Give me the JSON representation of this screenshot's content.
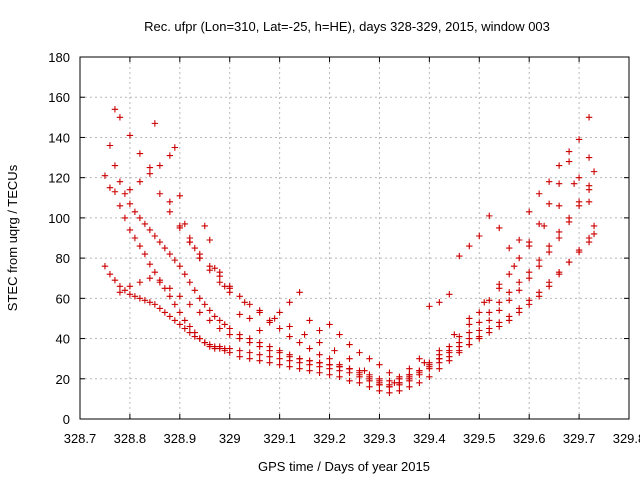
{
  "chart_data": {
    "type": "scatter",
    "title": "Rec. ufpr (Lon=310, Lat=-25, h=HE), days 328-329, 2015, window 003",
    "xlabel": "GPS time / Days of year 2015",
    "ylabel": "STEC from uqrg / TECUs",
    "xlim": [
      328.7,
      329.8
    ],
    "ylim": [
      0,
      180
    ],
    "x_ticks": [
      "328.7",
      "328.8",
      "328.9",
      "329",
      "329.1",
      "329.2",
      "329.3",
      "329.4",
      "329.5",
      "329.6",
      "329.7",
      "329.8"
    ],
    "y_ticks": [
      "0",
      "20",
      "40",
      "60",
      "80",
      "100",
      "120",
      "140",
      "160",
      "180"
    ],
    "grid": true,
    "marker": "+",
    "color": "#cc0000",
    "series": [
      {
        "x": [
          328.75,
          328.76,
          328.77,
          328.78,
          328.79,
          328.8,
          328.81,
          328.82,
          328.83,
          328.84,
          328.85,
          328.86,
          328.87,
          328.88,
          328.89,
          328.9,
          328.91,
          328.92,
          328.93,
          328.94,
          328.95,
          328.96,
          328.97,
          328.98,
          328.99,
          329.0,
          329.02,
          329.04,
          329.06,
          329.08,
          329.1,
          329.12,
          329.14,
          329.16,
          329.18,
          329.2,
          329.22,
          329.24,
          329.26,
          329.28,
          329.3,
          329.32,
          329.34,
          329.36,
          329.38,
          329.4,
          329.42,
          329.44,
          329.46,
          329.48,
          329.5,
          329.52,
          329.54,
          329.56,
          329.58,
          329.6,
          329.62,
          329.64,
          329.66,
          329.68,
          329.7,
          329.72,
          329.73
        ],
        "y": [
          121,
          115,
          113,
          106,
          100,
          94,
          90,
          86,
          82,
          77,
          73,
          69,
          65,
          61,
          57,
          53,
          49,
          46,
          43,
          40,
          38,
          36,
          35,
          35,
          34,
          33,
          31,
          30,
          29,
          28,
          27,
          26,
          25,
          24,
          23,
          22,
          21,
          19,
          18,
          16,
          14,
          13,
          14,
          16,
          18,
          21,
          25,
          29,
          33,
          37,
          41,
          45,
          48,
          51,
          55,
          59,
          63,
          68,
          73,
          78,
          83,
          88,
          92
        ]
      },
      {
        "x": [
          328.75,
          328.76,
          328.77,
          328.78,
          328.79,
          328.8,
          328.81,
          328.82,
          328.83,
          328.84,
          328.85,
          328.86,
          328.87,
          328.88,
          328.89,
          328.9,
          328.91,
          328.92,
          328.93,
          328.94,
          328.95,
          328.96,
          328.97,
          328.98,
          328.99,
          329.0,
          329.02,
          329.04,
          329.06,
          329.08,
          329.1,
          329.12,
          329.14,
          329.16,
          329.18,
          329.2,
          329.22,
          329.24,
          329.26,
          329.28,
          329.3,
          329.32,
          329.34,
          329.36,
          329.38,
          329.4,
          329.42,
          329.44,
          329.46,
          329.48,
          329.5,
          329.52,
          329.54,
          329.56,
          329.58,
          329.6,
          329.62,
          329.64,
          329.66,
          329.68,
          329.7,
          329.72,
          329.73
        ],
        "y": [
          76,
          72,
          69,
          66,
          64,
          62,
          61,
          60,
          59,
          58,
          57,
          55,
          53,
          51,
          49,
          47,
          45,
          43,
          41,
          40,
          38,
          37,
          36,
          36,
          35,
          35,
          34,
          33,
          32,
          31,
          30,
          29,
          28,
          27,
          26,
          25,
          24,
          23,
          21,
          19,
          17,
          16,
          17,
          19,
          22,
          25,
          28,
          31,
          34,
          37,
          40,
          43,
          46,
          49,
          53,
          57,
          61,
          66,
          72,
          78,
          84,
          90,
          96
        ]
      },
      {
        "x": [
          328.76,
          328.77,
          328.78,
          328.79,
          328.8,
          328.81,
          328.82,
          328.83,
          328.84,
          328.85,
          328.86,
          328.87,
          328.88,
          328.89,
          328.9,
          328.91,
          328.92,
          328.93,
          328.94,
          328.95,
          328.96,
          328.97,
          328.98,
          328.99,
          329.0,
          329.02,
          329.04,
          329.06,
          329.08,
          329.1,
          329.12,
          329.14,
          329.16,
          329.18,
          329.2,
          329.22,
          329.24,
          329.26,
          329.28,
          329.3,
          329.32,
          329.34,
          329.36,
          329.38,
          329.4,
          329.42,
          329.44,
          329.46,
          329.48,
          329.5,
          329.52,
          329.54,
          329.56,
          329.58,
          329.6,
          329.62,
          329.64,
          329.66,
          329.68,
          329.7,
          329.72
        ],
        "y": [
          136,
          126,
          118,
          112,
          107,
          103,
          100,
          97,
          94,
          91,
          88,
          85,
          82,
          79,
          76,
          72,
          68,
          64,
          60,
          57,
          54,
          51,
          49,
          47,
          45,
          42,
          40,
          38,
          36,
          34,
          32,
          30,
          29,
          28,
          27,
          26,
          25,
          24,
          22,
          20,
          19,
          20,
          22,
          24,
          27,
          30,
          33,
          36,
          40,
          44,
          49,
          54,
          59,
          64,
          70,
          76,
          83,
          90,
          98,
          106,
          114
        ]
      },
      {
        "x": [
          328.77,
          328.78,
          328.8,
          328.82,
          328.84,
          328.86,
          328.88,
          328.9,
          328.92,
          328.94,
          328.96,
          328.98,
          329.0,
          329.02,
          329.04,
          329.06,
          329.08,
          329.1,
          329.12,
          329.14,
          329.16,
          329.18,
          329.2,
          329.22,
          329.24,
          329.26,
          329.28,
          329.3,
          329.32,
          329.34,
          329.36,
          329.38,
          329.4,
          329.42,
          329.44,
          329.46,
          329.48,
          329.5,
          329.52,
          329.54,
          329.56,
          329.58,
          329.6,
          329.62,
          329.64,
          329.66,
          329.68,
          329.7,
          329.72
        ],
        "y": [
          154,
          150,
          141,
          132,
          122,
          112,
          103,
          95,
          88,
          82,
          76,
          71,
          66,
          61,
          57,
          53,
          49,
          45,
          41,
          38,
          35,
          32,
          30,
          27,
          25,
          22,
          20,
          17,
          16,
          18,
          21,
          24,
          28,
          32,
          36,
          41,
          47,
          53,
          59,
          65,
          72,
          80,
          88,
          97,
          107,
          117,
          128,
          139,
          150
        ]
      },
      {
        "x": [
          328.78,
          328.8,
          328.82,
          328.84,
          328.86,
          328.88,
          328.9,
          328.92,
          328.94,
          328.96,
          328.98,
          329.0,
          329.02,
          329.04,
          329.06,
          329.08,
          329.1,
          329.12,
          329.14,
          329.16,
          329.18,
          329.2,
          329.22,
          329.24,
          329.26,
          329.28,
          329.3,
          329.32,
          329.34,
          329.36,
          329.38,
          329.4,
          329.42,
          329.44,
          329.46,
          329.48,
          329.5,
          329.52,
          329.54,
          329.56,
          329.58,
          329.6,
          329.62,
          329.64,
          329.66,
          329.68,
          329.7,
          329.72
        ],
        "y": [
          63,
          66,
          68,
          70,
          68,
          65,
          61,
          57,
          53,
          49,
          45,
          42,
          40,
          38,
          36,
          34,
          33,
          31,
          30,
          29,
          28,
          27,
          26,
          25,
          23,
          21,
          19,
          17,
          18,
          20,
          23,
          26,
          30,
          34,
          38,
          43,
          48,
          53,
          58,
          63,
          68,
          73,
          79,
          86,
          93,
          100,
          108,
          116
        ]
      },
      {
        "x": [
          328.8,
          328.82,
          328.84,
          328.85,
          328.86,
          328.88,
          328.9,
          328.92,
          328.94,
          328.96,
          328.98,
          329.0,
          329.03,
          329.06,
          329.09,
          329.12,
          329.15,
          329.18,
          329.21,
          329.24,
          329.27,
          329.3,
          329.33,
          329.36,
          329.39,
          329.42,
          329.45,
          329.48,
          329.51,
          329.54,
          329.57,
          329.6,
          329.63,
          329.66,
          329.69,
          329.72
        ],
        "y": [
          114,
          118,
          125,
          147,
          126,
          108,
          96,
          88,
          80,
          74,
          68,
          63,
          58,
          54,
          50,
          46,
          42,
          38,
          34,
          30,
          24,
          18,
          18,
          22,
          28,
          34,
          42,
          50,
          58,
          67,
          76,
          86,
          96,
          106,
          117,
          130
        ]
      },
      {
        "x": [
          328.88,
          328.89,
          328.9,
          328.91,
          328.92,
          328.93,
          328.94,
          328.95,
          328.96,
          328.97,
          328.98,
          328.99,
          329.0,
          329.02,
          329.04,
          329.06,
          329.08,
          329.1,
          329.12,
          329.14,
          329.16,
          329.18,
          329.2,
          329.22,
          329.24,
          329.26,
          329.28,
          329.3,
          329.32,
          329.34,
          329.36,
          329.38,
          329.4,
          329.42,
          329.44,
          329.46,
          329.48,
          329.5,
          329.52,
          329.54,
          329.56,
          329.58,
          329.6,
          329.62,
          329.64,
          329.66,
          329.68,
          329.7,
          329.72,
          329.73
        ],
        "y": [
          131,
          135,
          111,
          97,
          90,
          85,
          80,
          96,
          89,
          75,
          73,
          66,
          65,
          52,
          50,
          44,
          48,
          53,
          58,
          63,
          49,
          44,
          47,
          42,
          37,
          33,
          30,
          27,
          23,
          21,
          25,
          30,
          56,
          58,
          62,
          81,
          86,
          91,
          101,
          95,
          85,
          89,
          103,
          112,
          118,
          126,
          133,
          120,
          108,
          123
        ]
      }
    ]
  }
}
